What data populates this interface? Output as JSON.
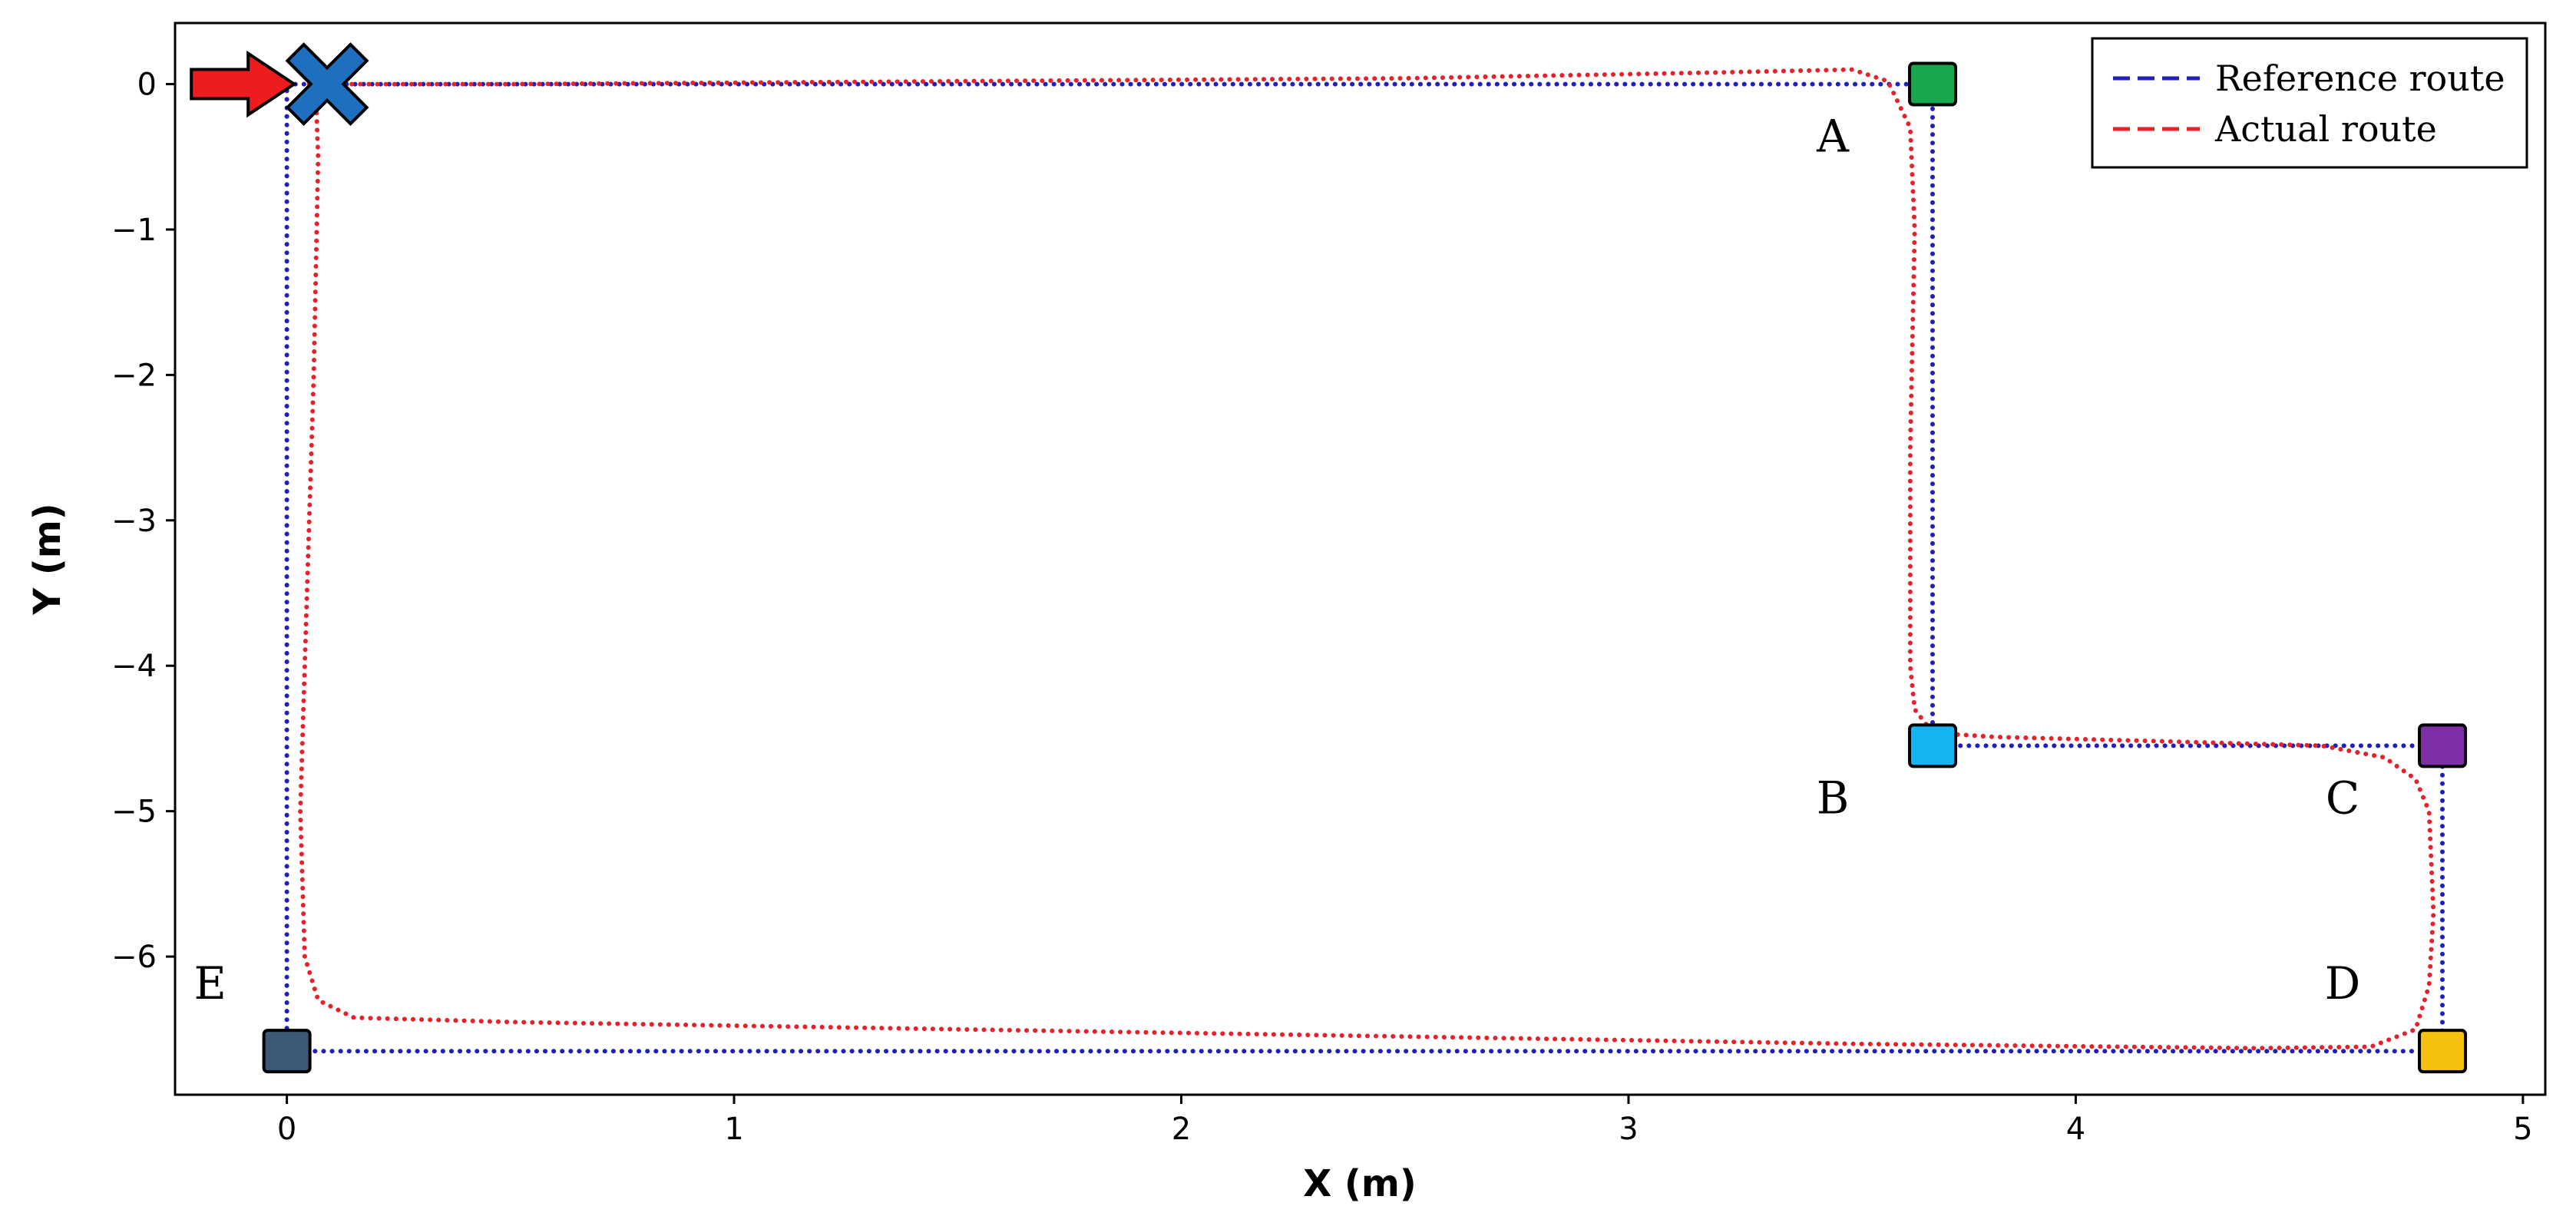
{
  "chart_data": {
    "type": "line",
    "title": "",
    "xlabel": "X (m)",
    "ylabel": "Y (m)",
    "xlim": [
      -0.25,
      5.05
    ],
    "ylim": [
      -6.95,
      0.42
    ],
    "xticks": [
      0,
      1,
      2,
      3,
      4,
      5
    ],
    "yticks": [
      0,
      -1,
      -2,
      -3,
      -4,
      -5,
      -6
    ],
    "grid": false,
    "legend_position": "top-right",
    "series": [
      {
        "name": "Reference route",
        "color": "#1f1fbf",
        "style": "dotted",
        "x": [
          0.0,
          3.68,
          3.68,
          4.82,
          4.82,
          0.0,
          0.0
        ],
        "y": [
          0.0,
          0.0,
          -4.55,
          -4.55,
          -6.65,
          -6.65,
          0.0
        ]
      },
      {
        "name": "Actual route",
        "color": "#e8202a",
        "style": "dotted",
        "x": [
          0.05,
          0.5,
          1.5,
          2.5,
          3.2,
          3.5,
          3.58,
          3.63,
          3.64,
          3.63,
          3.63,
          3.64,
          3.67,
          3.72,
          3.82,
          4.2,
          4.55,
          4.69,
          4.76,
          4.79,
          4.8,
          4.79,
          4.76,
          4.66,
          4.4,
          3.5,
          2.5,
          1.5,
          0.5,
          0.15,
          0.07,
          0.04,
          0.03,
          0.04,
          0.06,
          0.07,
          0.065,
          0.05
        ],
        "y": [
          0.0,
          0.0,
          0.02,
          0.04,
          0.08,
          0.1,
          0.02,
          -0.3,
          -1.0,
          -2.5,
          -4.0,
          -4.3,
          -4.42,
          -4.47,
          -4.49,
          -4.52,
          -4.55,
          -4.63,
          -4.78,
          -5.0,
          -5.7,
          -6.2,
          -6.5,
          -6.62,
          -6.63,
          -6.6,
          -6.55,
          -6.5,
          -6.45,
          -6.42,
          -6.3,
          -6.0,
          -5.0,
          -4.0,
          -2.0,
          -0.5,
          -0.1,
          0.0
        ]
      }
    ],
    "markers": [
      {
        "label": "A",
        "x": 3.68,
        "y": 0.0,
        "color": "#1aa64a"
      },
      {
        "label": "B",
        "x": 3.68,
        "y": -4.55,
        "color": "#16b5f2"
      },
      {
        "label": "C",
        "x": 4.82,
        "y": -4.55,
        "color": "#7d2fa8"
      },
      {
        "label": "D",
        "x": 4.82,
        "y": -6.65,
        "color": "#f6c00e"
      },
      {
        "label": "E",
        "x": 0.0,
        "y": -6.65,
        "color": "#3a5a78"
      }
    ],
    "start_marker": {
      "shape": "arrow",
      "x": -0.09,
      "y": 0.0,
      "color": "#ee1c1c"
    },
    "end_marker": {
      "shape": "cross",
      "x": 0.09,
      "y": 0.0,
      "color": "#1f6fc0"
    }
  }
}
